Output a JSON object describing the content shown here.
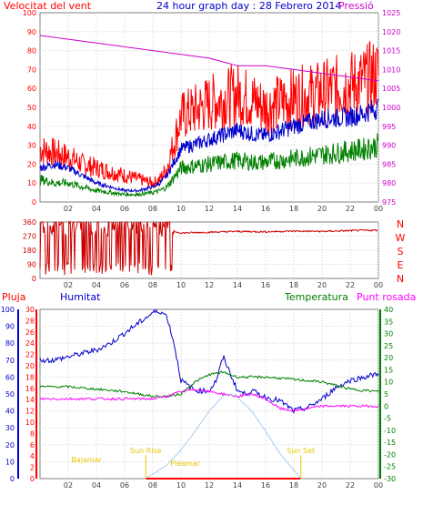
{
  "chart_data": [
    {
      "type": "line",
      "title": "24 hour graph day : 28 Febrero 2014",
      "left_axis_label": "Velocitat del vent",
      "right_axis_label": "Pressió",
      "x_ticks": [
        "02",
        "04",
        "06",
        "08",
        "10",
        "12",
        "14",
        "16",
        "18",
        "20",
        "22",
        "00"
      ],
      "y_left_ticks": [
        "0",
        "10",
        "20",
        "30",
        "40",
        "50",
        "60",
        "70",
        "80",
        "90",
        "100"
      ],
      "y_right_ticks": [
        "975",
        "980",
        "985",
        "990",
        "995",
        "1000",
        "1005",
        "1010",
        "1015",
        "1020",
        "1025"
      ],
      "y_left_range": [
        0,
        100
      ],
      "y_right_range": [
        975,
        1025
      ],
      "grid": true,
      "series": [
        {
          "color": "#ff0000",
          "x": [
            0,
            1,
            2,
            3,
            4,
            5,
            6,
            7,
            8,
            8.5,
            9,
            10,
            12,
            14,
            15,
            16,
            18,
            20,
            22,
            23,
            24
          ],
          "y": [
            28,
            26,
            24,
            20,
            18,
            16,
            14,
            12,
            10,
            12,
            18,
            45,
            52,
            57,
            54,
            50,
            55,
            58,
            62,
            64,
            68
          ]
        },
        {
          "color": "#0000cc",
          "x": [
            0,
            1,
            2,
            3,
            4,
            5,
            6,
            7,
            8,
            8.5,
            9,
            10,
            12,
            14,
            15,
            16,
            18,
            20,
            22,
            23,
            24
          ],
          "y": [
            18,
            20,
            18,
            14,
            10,
            8,
            6,
            6,
            8,
            10,
            14,
            28,
            33,
            38,
            36,
            35,
            40,
            44,
            45,
            47,
            50
          ]
        },
        {
          "color": "#008000",
          "x": [
            0,
            1,
            2,
            3,
            4,
            5,
            6,
            7,
            8,
            8.5,
            9,
            10,
            12,
            14,
            15,
            16,
            18,
            20,
            22,
            23,
            24
          ],
          "y": [
            12,
            10,
            10,
            8,
            6,
            5,
            4,
            4,
            5,
            6,
            8,
            18,
            20,
            22,
            21,
            21,
            23,
            25,
            27,
            28,
            30
          ]
        },
        {
          "color": "#cc00cc",
          "axis": "right",
          "x": [
            0,
            2,
            4,
            6,
            8,
            10,
            12,
            14,
            16,
            18,
            20,
            22,
            24
          ],
          "y": [
            1019,
            1018,
            1017,
            1016,
            1015,
            1014,
            1013,
            1011,
            1011,
            1010,
            1009,
            1008,
            1007
          ]
        }
      ]
    },
    {
      "type": "line",
      "right_letters": [
        "N",
        "W",
        "S",
        "E",
        "N"
      ],
      "x_ticks": [
        "02",
        "04",
        "06",
        "08",
        "10",
        "12",
        "14",
        "16",
        "18",
        "20",
        "22",
        "00"
      ],
      "y_left_ticks": [
        "0",
        "90",
        "180",
        "270",
        "360"
      ],
      "y_range": [
        0,
        360
      ],
      "grid": true,
      "series": [
        {
          "color": "#cc0000",
          "x": [
            0,
            0.5,
            1,
            1.5,
            2,
            2.5,
            3,
            3.5,
            4,
            4.5,
            5,
            5.5,
            6,
            6.5,
            7,
            7.5,
            8,
            8.5,
            9,
            9.5,
            10,
            12,
            14,
            16,
            18,
            20,
            22,
            24
          ],
          "y": [
            0,
            300,
            40,
            340,
            20,
            320,
            60,
            240,
            80,
            300,
            60,
            330,
            120,
            280,
            40,
            300,
            100,
            260,
            340,
            300,
            290,
            295,
            300,
            298,
            302,
            300,
            305,
            308
          ]
        }
      ]
    },
    {
      "type": "line",
      "labels": {
        "rain": "Pluja",
        "humidity": "Humitat",
        "temperature": "Temperatura",
        "dewpoint": "Punt rosada",
        "high_tide": "Bajamar",
        "sunrise": "Sun Rise",
        "low_tide": "Pleamar",
        "sunset": "Sun Set"
      },
      "rain_ticks": [
        "0",
        "2",
        "4",
        "6",
        "8",
        "10",
        "12",
        "14",
        "16",
        "18",
        "20",
        "22",
        "24",
        "26",
        "28",
        "30"
      ],
      "humidity_ticks": [
        "0",
        "10",
        "20",
        "30",
        "40",
        "50",
        "60",
        "70",
        "80",
        "90",
        "100"
      ],
      "temperature_ticks": [
        "40",
        "35",
        "30",
        "25",
        "20",
        "15",
        "10",
        "5",
        "0",
        "-5",
        "-10",
        "-15",
        "-20",
        "-25",
        "-30"
      ],
      "x_ticks": [
        "02",
        "04",
        "06",
        "08",
        "10",
        "12",
        "14",
        "16",
        "18",
        "20",
        "22",
        "00"
      ],
      "grid": true,
      "series": [
        {
          "color": "#0000cc",
          "axis": "humidity",
          "x": [
            0,
            1,
            2,
            3,
            4,
            5,
            6,
            7,
            8,
            8.5,
            9,
            9.5,
            10,
            11,
            12,
            12.5,
            13,
            13.5,
            14,
            14.5,
            15,
            16,
            17,
            18,
            19,
            20,
            21,
            22,
            23,
            24
          ],
          "y": [
            70,
            70,
            72,
            74,
            76,
            80,
            86,
            92,
            98,
            99,
            96,
            80,
            58,
            52,
            52,
            58,
            72,
            62,
            52,
            50,
            52,
            48,
            46,
            40,
            42,
            47,
            54,
            58,
            60,
            62
          ]
        },
        {
          "color": "#008000",
          "axis": "temperature",
          "x": [
            0,
            2,
            4,
            6,
            8,
            9,
            10,
            11,
            12,
            13,
            14,
            16,
            18,
            20,
            22,
            24
          ],
          "y": [
            8,
            8,
            7,
            6,
            4,
            4,
            5,
            10,
            13,
            14,
            12,
            12,
            11,
            10,
            7,
            6
          ]
        },
        {
          "color": "#ff00ff",
          "axis": "temperature",
          "x": [
            0,
            2,
            4,
            6,
            8,
            9,
            10,
            11,
            12,
            13,
            14,
            15,
            16,
            17,
            18,
            19,
            20,
            22,
            24
          ],
          "y": [
            3,
            3,
            3,
            3,
            3,
            4,
            6,
            7,
            6,
            5,
            4,
            5,
            3,
            -1,
            -2,
            -1,
            0,
            0,
            0
          ]
        },
        {
          "color": "#aaccee",
          "axis": "humidity",
          "x": [
            7.5,
            9,
            10,
            11,
            12,
            13,
            13.5,
            14,
            15,
            16,
            17,
            18,
            18.5
          ],
          "y": [
            0,
            8,
            17,
            28,
            40,
            49,
            50,
            48,
            40,
            28,
            15,
            5,
            0
          ]
        },
        {
          "color": "#ff0000",
          "axis": "rain",
          "x": [
            7.5,
            18.5
          ],
          "y": [
            0,
            0
          ]
        }
      ]
    }
  ]
}
